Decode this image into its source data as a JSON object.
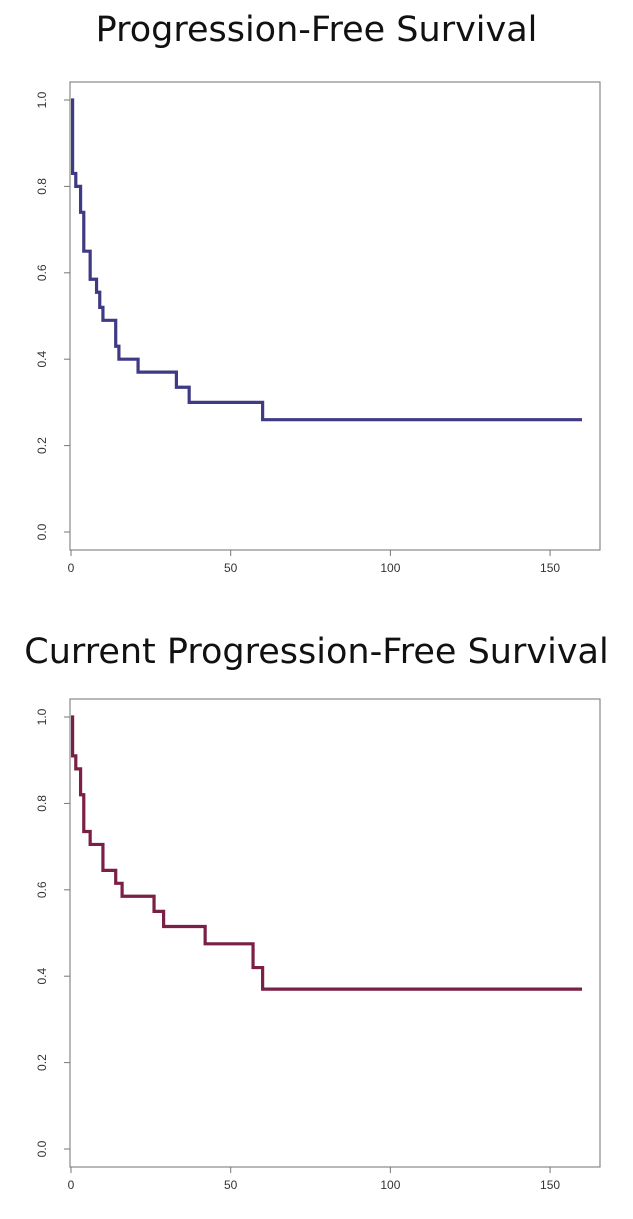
{
  "chart_data": [
    {
      "type": "line",
      "step": true,
      "title": "Progression-Free Survival",
      "xlabel": "",
      "ylabel": "",
      "xlim": [
        0,
        160
      ],
      "ylim": [
        0,
        1
      ],
      "xticks": [
        0,
        50,
        100,
        150
      ],
      "xtick_labels": [
        "0",
        "50",
        "100",
        "150"
      ],
      "yticks": [
        0,
        0.2,
        0.4,
        0.6,
        0.8,
        1.0
      ],
      "ytick_labels": [
        "0.0",
        "0.2",
        "0.4",
        "0.6",
        "0.8",
        "1.0"
      ],
      "grid": false,
      "color": "#3f3a84",
      "series": [
        {
          "x": [
            0,
            0.5,
            1.5,
            3,
            4,
            6,
            8,
            9,
            10,
            14,
            15,
            21,
            33,
            37,
            60,
            160
          ],
          "y": [
            1.0,
            0.83,
            0.8,
            0.74,
            0.65,
            0.585,
            0.555,
            0.52,
            0.49,
            0.43,
            0.4,
            0.37,
            0.335,
            0.3,
            0.26,
            0.26
          ]
        }
      ]
    },
    {
      "type": "line",
      "step": true,
      "title": "Current Progression-Free Survival",
      "xlabel": "",
      "ylabel": "",
      "xlim": [
        0,
        160
      ],
      "ylim": [
        0,
        1
      ],
      "xticks": [
        0,
        50,
        100,
        150
      ],
      "xtick_labels": [
        "0",
        "50",
        "100",
        "150"
      ],
      "yticks": [
        0,
        0.2,
        0.4,
        0.6,
        0.8,
        1.0
      ],
      "ytick_labels": [
        "0.0",
        "0.2",
        "0.4",
        "0.6",
        "0.8",
        "1.0"
      ],
      "grid": false,
      "color": "#7a1f45",
      "series": [
        {
          "x": [
            0,
            0.5,
            1.5,
            3,
            4,
            6,
            10,
            14,
            16,
            26,
            29,
            42,
            57,
            60,
            160
          ],
          "y": [
            1.0,
            0.91,
            0.88,
            0.82,
            0.735,
            0.705,
            0.645,
            0.615,
            0.585,
            0.55,
            0.515,
            0.475,
            0.42,
            0.37,
            0.37
          ]
        }
      ]
    }
  ]
}
